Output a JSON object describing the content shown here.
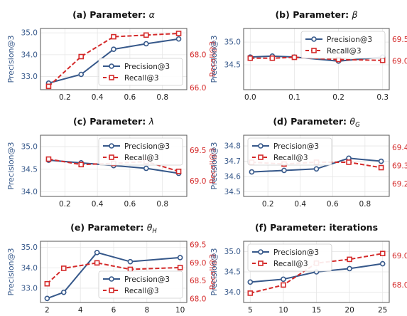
{
  "colors": {
    "precision": "#36588a",
    "recall": "#d42a2a",
    "grid": "#e6e6e6",
    "axis": "#555555"
  },
  "chart_data": [
    {
      "type": "line",
      "title_prefix": "(a) Parameter: ",
      "title_symbol": "α",
      "x": [
        0.1,
        0.3,
        0.5,
        0.7,
        0.9
      ],
      "xticks": [
        "0.2",
        "0.4",
        "0.6",
        "0.8"
      ],
      "xtick_values": [
        0.2,
        0.4,
        0.6,
        0.8
      ],
      "xlim": [
        0.05,
        0.95
      ],
      "ylabel_left": "Precision@3",
      "ylabel_right": "Recall@3",
      "ylim_left": [
        32.4,
        35.2
      ],
      "yticks_left": [
        "33.0",
        "34.0",
        "35.0"
      ],
      "ytick_values_left": [
        33.0,
        34.0,
        35.0
      ],
      "ylim_right": [
        65.9,
        69.6
      ],
      "yticks_right": [
        "66.0",
        "68.0"
      ],
      "ytick_values_right": [
        66.0,
        68.0
      ],
      "series": [
        {
          "name": "Precision@3",
          "axis": "left",
          "values": [
            32.7,
            33.1,
            34.25,
            34.5,
            34.72
          ]
        },
        {
          "name": "Recall@3",
          "axis": "right",
          "values": [
            66.1,
            67.9,
            69.1,
            69.2,
            69.3
          ]
        }
      ],
      "legend": "lower-right"
    },
    {
      "type": "line",
      "title_prefix": "(b) Parameter: ",
      "title_symbol": "β",
      "x": [
        0.0,
        0.05,
        0.1,
        0.2,
        0.3
      ],
      "xticks": [
        "0.0",
        "0.1",
        "0.2",
        "0.3"
      ],
      "xtick_values": [
        0.0,
        0.1,
        0.2,
        0.3
      ],
      "xlim": [
        -0.015,
        0.315
      ],
      "ylabel_left": "Precision@3",
      "ylabel_right": "Recall@3",
      "ylim_left": [
        33.95,
        35.3
      ],
      "yticks_left": [
        "34.5",
        "35.0"
      ],
      "ytick_values_left": [
        34.5,
        35.0
      ],
      "ylim_right": [
        68.35,
        69.75
      ],
      "yticks_right": [
        "69.0",
        "69.5"
      ],
      "ytick_values_right": [
        69.0,
        69.5
      ],
      "series": [
        {
          "name": "Precision@3",
          "axis": "left",
          "values": [
            34.67,
            34.69,
            34.67,
            34.58,
            34.67
          ]
        },
        {
          "name": "Recall@3",
          "axis": "right",
          "values": [
            69.07,
            69.07,
            69.09,
            69.04,
            69.02
          ]
        }
      ],
      "legend": "upper-right"
    },
    {
      "type": "line",
      "title_prefix": "(c) Parameter: ",
      "title_symbol": "λ",
      "x": [
        0.1,
        0.3,
        0.5,
        0.7,
        0.9
      ],
      "xticks": [
        "0.2",
        "0.4",
        "0.6",
        "0.8"
      ],
      "xtick_values": [
        0.2,
        0.4,
        0.6,
        0.8
      ],
      "xlim": [
        0.05,
        0.95
      ],
      "ylabel_left": "Precision@3",
      "ylabel_right": "Recall@3",
      "ylim_left": [
        33.9,
        35.25
      ],
      "yticks_left": [
        "34.0",
        "34.5",
        "35.0"
      ],
      "ytick_values_left": [
        34.0,
        34.5,
        35.0
      ],
      "ylim_right": [
        68.75,
        69.75
      ],
      "yticks_right": [
        "69.0",
        "69.5"
      ],
      "ytick_values_right": [
        69.0,
        69.5
      ],
      "series": [
        {
          "name": "Precision@3",
          "axis": "left",
          "values": [
            34.7,
            34.64,
            34.58,
            34.52,
            34.41
          ]
        },
        {
          "name": "Recall@3",
          "axis": "right",
          "values": [
            69.36,
            69.27,
            69.29,
            69.32,
            69.16
          ]
        }
      ],
      "legend": "upper-right"
    },
    {
      "type": "line",
      "title_prefix": "(d) Parameter: ",
      "title_symbol": "θ",
      "title_subscript": "G",
      "x": [
        0.1,
        0.3,
        0.5,
        0.7,
        0.9
      ],
      "xticks": [
        "0.2",
        "0.4",
        "0.6",
        "0.8"
      ],
      "xtick_values": [
        0.2,
        0.4,
        0.6,
        0.8
      ],
      "xlim": [
        0.05,
        0.95
      ],
      "ylabel_left": "Precision@3",
      "ylabel_right": "Recall@3",
      "ylim_left": [
        34.47,
        34.87
      ],
      "yticks_left": [
        "34.5",
        "34.6",
        "34.7",
        "34.8"
      ],
      "ytick_values_left": [
        34.5,
        34.6,
        34.7,
        34.8
      ],
      "ylim_right": [
        69.13,
        69.47
      ],
      "yticks_right": [
        "69.2",
        "69.3",
        "69.4"
      ],
      "ytick_values_right": [
        69.2,
        69.3,
        69.4
      ],
      "series": [
        {
          "name": "Precision@3",
          "axis": "left",
          "values": [
            34.63,
            34.64,
            34.65,
            34.72,
            34.7
          ]
        },
        {
          "name": "Recall@3",
          "axis": "right",
          "values": [
            69.32,
            69.31,
            69.32,
            69.32,
            69.29
          ]
        }
      ],
      "legend": "upper-left"
    },
    {
      "type": "line",
      "title_prefix": "(e) Parameter: ",
      "title_symbol": "θ",
      "title_subscript": "H",
      "x": [
        2,
        3,
        5,
        7,
        10
      ],
      "xticks": [
        "2",
        "4",
        "6",
        "8",
        "10"
      ],
      "xtick_values": [
        2,
        4,
        6,
        8,
        10
      ],
      "xlim": [
        1.6,
        10.4
      ],
      "ylabel_left": "Precision@3",
      "ylabel_right": "Recall@3",
      "ylim_left": [
        32.3,
        35.3
      ],
      "yticks_left": [
        "33.0",
        "34.0",
        "35.0"
      ],
      "ytick_values_left": [
        33.0,
        34.0,
        35.0
      ],
      "ylim_right": [
        67.9,
        69.6
      ],
      "yticks_right": [
        "68.0",
        "68.5",
        "69.0",
        "69.5"
      ],
      "ytick_values_right": [
        68.0,
        68.5,
        69.0,
        69.5
      ],
      "series": [
        {
          "name": "Precision@3",
          "axis": "left",
          "values": [
            32.5,
            32.8,
            34.75,
            34.3,
            34.5
          ]
        },
        {
          "name": "Recall@3",
          "axis": "right",
          "values": [
            68.42,
            68.85,
            69.0,
            68.82,
            68.87
          ]
        }
      ],
      "legend": "lower-right"
    },
    {
      "type": "line",
      "title_prefix": "(f) Parameter: iterations",
      "title_symbol": "",
      "x": [
        5,
        10,
        15,
        20,
        25
      ],
      "xticks": [
        "5",
        "10",
        "15",
        "20",
        "25"
      ],
      "xtick_values": [
        5,
        10,
        15,
        20,
        25
      ],
      "xlim": [
        4.0,
        26.0
      ],
      "ylabel_left": "Precision@3",
      "ylabel_right": "Recall@3",
      "ylim_left": [
        33.75,
        35.25
      ],
      "yticks_left": [
        "34.0",
        "34.5",
        "35.0"
      ],
      "ytick_values_left": [
        34.0,
        34.5,
        35.0
      ],
      "ylim_right": [
        67.4,
        69.5
      ],
      "yticks_right": [
        "68.0",
        "69.0"
      ],
      "ytick_values_right": [
        68.0,
        69.0
      ],
      "series": [
        {
          "name": "Precision@3",
          "axis": "left",
          "values": [
            34.25,
            34.32,
            34.5,
            34.58,
            34.7
          ]
        },
        {
          "name": "Recall@3",
          "axis": "right",
          "values": [
            67.72,
            68.0,
            68.75,
            68.88,
            69.08
          ]
        }
      ],
      "legend": "upper-left"
    }
  ]
}
